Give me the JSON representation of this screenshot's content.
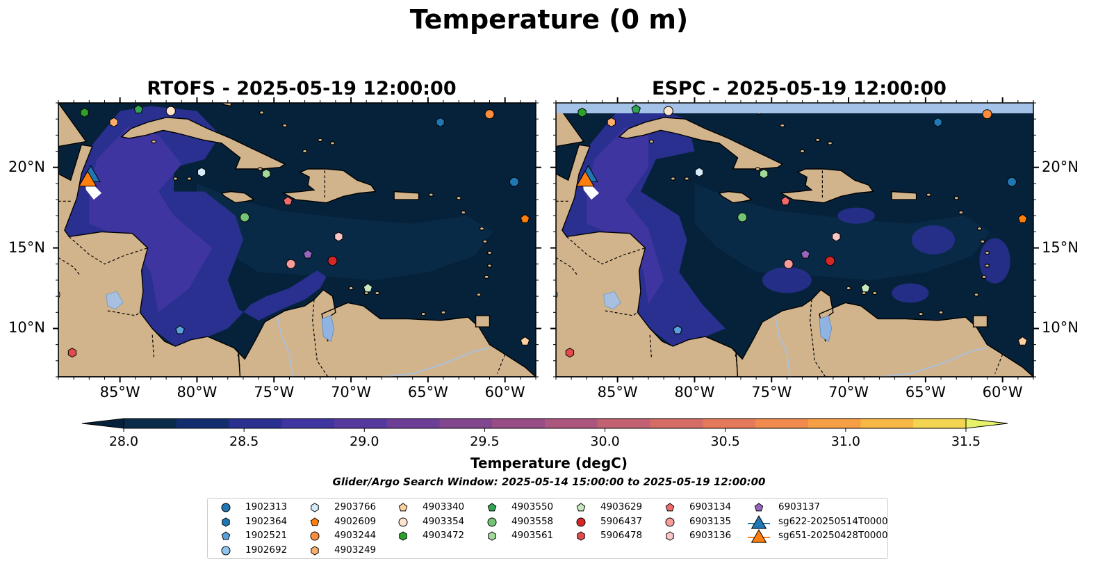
{
  "title": "Temperature (0 m)",
  "panels": [
    {
      "title": "RTOFS - 2025-05-19 12:00:00",
      "top_band": false
    },
    {
      "title": "ESPC - 2025-05-19 12:00:00",
      "top_band": true
    }
  ],
  "map_extent": {
    "lon": [
      -89,
      -58
    ],
    "lat": [
      7,
      24
    ]
  },
  "lon_ticks": [
    "85°W",
    "80°W",
    "75°W",
    "70°W",
    "65°W",
    "60°W"
  ],
  "lon_tick_values": [
    -85,
    -80,
    -75,
    -70,
    -65,
    -60
  ],
  "lat_ticks": [
    "20°N",
    "15°N",
    "10°N"
  ],
  "lat_tick_values": [
    20,
    15,
    10
  ],
  "colors": {
    "land": "#d2b48c",
    "ocean_base": "#06223a",
    "lake": "#8fb4e2",
    "espc_top_band": "#a4c2e8",
    "river": "#a8c0e0"
  },
  "colorbar": {
    "ticks": [
      "28.0",
      "28.5",
      "29.0",
      "29.5",
      "30.0",
      "30.5",
      "31.0",
      "31.5"
    ],
    "min": 28.0,
    "max": 31.5,
    "step": 0.25,
    "colors": [
      "#0a2c4a",
      "#132e6e",
      "#29308f",
      "#3f35a0",
      "#56399f",
      "#6c3e96",
      "#82468e",
      "#984d87",
      "#ad567d",
      "#c16171",
      "#d56d66",
      "#e5795a",
      "#f08a4d",
      "#f79f45",
      "#f8b845",
      "#f3d552"
    ],
    "under_color": "#06223a",
    "over_color": "#e6f36a",
    "label": "Temperature (degC)"
  },
  "search_window": "Glider/Argo Search Window: 2025-05-14 15:00:00 to 2025-05-19 12:00:00",
  "floats": [
    {
      "id": "1902313",
      "shape": "circle",
      "color": "#1f77b4",
      "lon": -59.4,
      "lat": 19.1
    },
    {
      "id": "1902364",
      "shape": "hexagon",
      "color": "#1f77b4",
      "lon": -64.2,
      "lat": 22.8
    },
    {
      "id": "1902521",
      "shape": "pentagon",
      "color": "#5aa0dc",
      "lon": -81.1,
      "lat": 9.9
    },
    {
      "id": "1902692",
      "shape": "circle",
      "color": "#8ec5ef",
      "lon": -89.2,
      "lat": 12.1
    },
    {
      "id": "2903766",
      "shape": "hexagon",
      "color": "#d4ecfb",
      "lon": -79.7,
      "lat": 19.7
    },
    {
      "id": "4902609",
      "shape": "pentagon",
      "color": "#ff7f0e",
      "lon": -58.7,
      "lat": 16.8
    },
    {
      "id": "4903244",
      "shape": "circle",
      "color": "#fd8d3c",
      "lon": -61.0,
      "lat": 23.3
    },
    {
      "id": "4903249",
      "shape": "hexagon",
      "color": "#fdae6b",
      "lon": -85.4,
      "lat": 22.8
    },
    {
      "id": "4903340",
      "shape": "pentagon",
      "color": "#fdd0a2",
      "lon": -58.7,
      "lat": 9.2
    },
    {
      "id": "4903354",
      "shape": "circle",
      "color": "#fee6ce",
      "lon": -81.7,
      "lat": 23.5
    },
    {
      "id": "4903472",
      "shape": "hexagon",
      "color": "#2ca02c",
      "lon": -87.3,
      "lat": 23.4
    },
    {
      "id": "4903550",
      "shape": "pentagon",
      "color": "#31a354",
      "lon": -83.8,
      "lat": 23.6
    },
    {
      "id": "4903558",
      "shape": "circle",
      "color": "#74c476",
      "lon": -76.9,
      "lat": 16.9
    },
    {
      "id": "4903561",
      "shape": "hexagon",
      "color": "#a1d99b",
      "lon": -75.5,
      "lat": 19.6
    },
    {
      "id": "4903629",
      "shape": "pentagon",
      "color": "#c7e9c0",
      "lon": -68.9,
      "lat": 12.5
    },
    {
      "id": "5906437",
      "shape": "circle",
      "color": "#d62728",
      "lon": -71.2,
      "lat": 14.2
    },
    {
      "id": "5906478",
      "shape": "hexagon",
      "color": "#e34a4a",
      "lon": -88.1,
      "lat": 8.5
    },
    {
      "id": "6903134",
      "shape": "pentagon",
      "color": "#f26b6b",
      "lon": -74.1,
      "lat": 17.9
    },
    {
      "id": "6903135",
      "shape": "circle",
      "color": "#f79b9b",
      "lon": -73.9,
      "lat": 14.0
    },
    {
      "id": "6903136",
      "shape": "hexagon",
      "color": "#fbc6c6",
      "lon": -70.8,
      "lat": 15.7
    },
    {
      "id": "6903137",
      "shape": "pentagon",
      "color": "#9467bd",
      "lon": -72.8,
      "lat": 14.6
    }
  ],
  "gliders": [
    {
      "id": "sg622-20250514T0000",
      "color": "#1f77b4",
      "lon": -86.9,
      "lat": 19.5
    },
    {
      "id": "sg651-20250428T0000",
      "color": "#ff7f0e",
      "lon": -87.1,
      "lat": 19.2
    }
  ],
  "legend_columns": [
    [
      "1902313",
      "1902364",
      "1902521",
      "1902692"
    ],
    [
      "2903766",
      "4902609",
      "4903244",
      "4903249"
    ],
    [
      "4903340",
      "4903354",
      "4903472"
    ],
    [
      "4903550",
      "4903558",
      "4903561"
    ],
    [
      "4903629",
      "5906437",
      "5906478"
    ],
    [
      "6903134",
      "6903135",
      "6903136"
    ],
    [
      "6903137",
      "sg622-20250514T0000",
      "sg651-20250428T0000"
    ]
  ]
}
